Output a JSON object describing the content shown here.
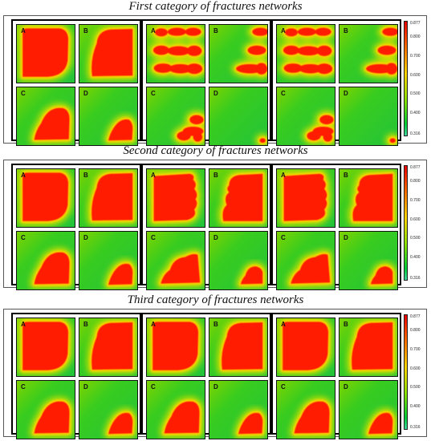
{
  "sections": [
    {
      "title": "First category of fractures networks",
      "groups": [
        {
          "panels": [
            {
              "label": "A",
              "shape": "big"
            },
            {
              "label": "B",
              "shape": "mid"
            },
            {
              "label": "C",
              "shape": "small"
            },
            {
              "label": "D",
              "shape": "tiny"
            }
          ]
        },
        {
          "panels": [
            {
              "label": "A",
              "shape": "fingerA"
            },
            {
              "label": "B",
              "shape": "fingerB"
            },
            {
              "label": "C",
              "shape": "fingerC"
            },
            {
              "label": "D",
              "shape": "none"
            }
          ]
        },
        {
          "panels": [
            {
              "label": "A",
              "shape": "fingerA"
            },
            {
              "label": "B",
              "shape": "fingerB"
            },
            {
              "label": "C",
              "shape": "fingerC"
            },
            {
              "label": "D",
              "shape": "none"
            }
          ]
        }
      ],
      "colorbar": {
        "max": "0.877",
        "ticks": [
          "0.800",
          "0.700",
          "0.600",
          "0.500",
          "0.400"
        ],
        "min": "0.316"
      }
    },
    {
      "title": "Second category of fractures networks",
      "groups": [
        {
          "panels": [
            {
              "label": "A",
              "shape": "big"
            },
            {
              "label": "B",
              "shape": "mid"
            },
            {
              "label": "C",
              "shape": "small"
            },
            {
              "label": "D",
              "shape": "tiny"
            }
          ]
        },
        {
          "panels": [
            {
              "label": "A",
              "shape": "lobeA"
            },
            {
              "label": "B",
              "shape": "lobeB"
            },
            {
              "label": "C",
              "shape": "lobeC"
            },
            {
              "label": "D",
              "shape": "lobeD"
            }
          ]
        },
        {
          "panels": [
            {
              "label": "A",
              "shape": "lobeA"
            },
            {
              "label": "B",
              "shape": "lobeB"
            },
            {
              "label": "C",
              "shape": "lobeC"
            },
            {
              "label": "D",
              "shape": "lobeD"
            }
          ]
        }
      ],
      "colorbar": {
        "max": "0.877",
        "ticks": [
          "0.800",
          "0.700",
          "0.600",
          "0.500",
          "0.400"
        ],
        "min": "0.316"
      }
    },
    {
      "title": "Third category of fractures networks",
      "groups": [
        {
          "panels": [
            {
              "label": "A",
              "shape": "big"
            },
            {
              "label": "B",
              "shape": "mid"
            },
            {
              "label": "C",
              "shape": "small"
            },
            {
              "label": "D",
              "shape": "tiny"
            }
          ]
        },
        {
          "panels": [
            {
              "label": "A",
              "shape": "big"
            },
            {
              "label": "B",
              "shape": "mid"
            },
            {
              "label": "C",
              "shape": "small"
            },
            {
              "label": "D",
              "shape": "tiny"
            }
          ]
        },
        {
          "panels": [
            {
              "label": "A",
              "shape": "big"
            },
            {
              "label": "B",
              "shape": "mid"
            },
            {
              "label": "C",
              "shape": "small"
            },
            {
              "label": "D",
              "shape": "tiny"
            }
          ]
        }
      ],
      "colorbar": {
        "max": "0.877",
        "ticks": [
          "0.800",
          "0.700",
          "0.600",
          "0.500",
          "0.400"
        ],
        "min": "0.316"
      }
    }
  ]
}
